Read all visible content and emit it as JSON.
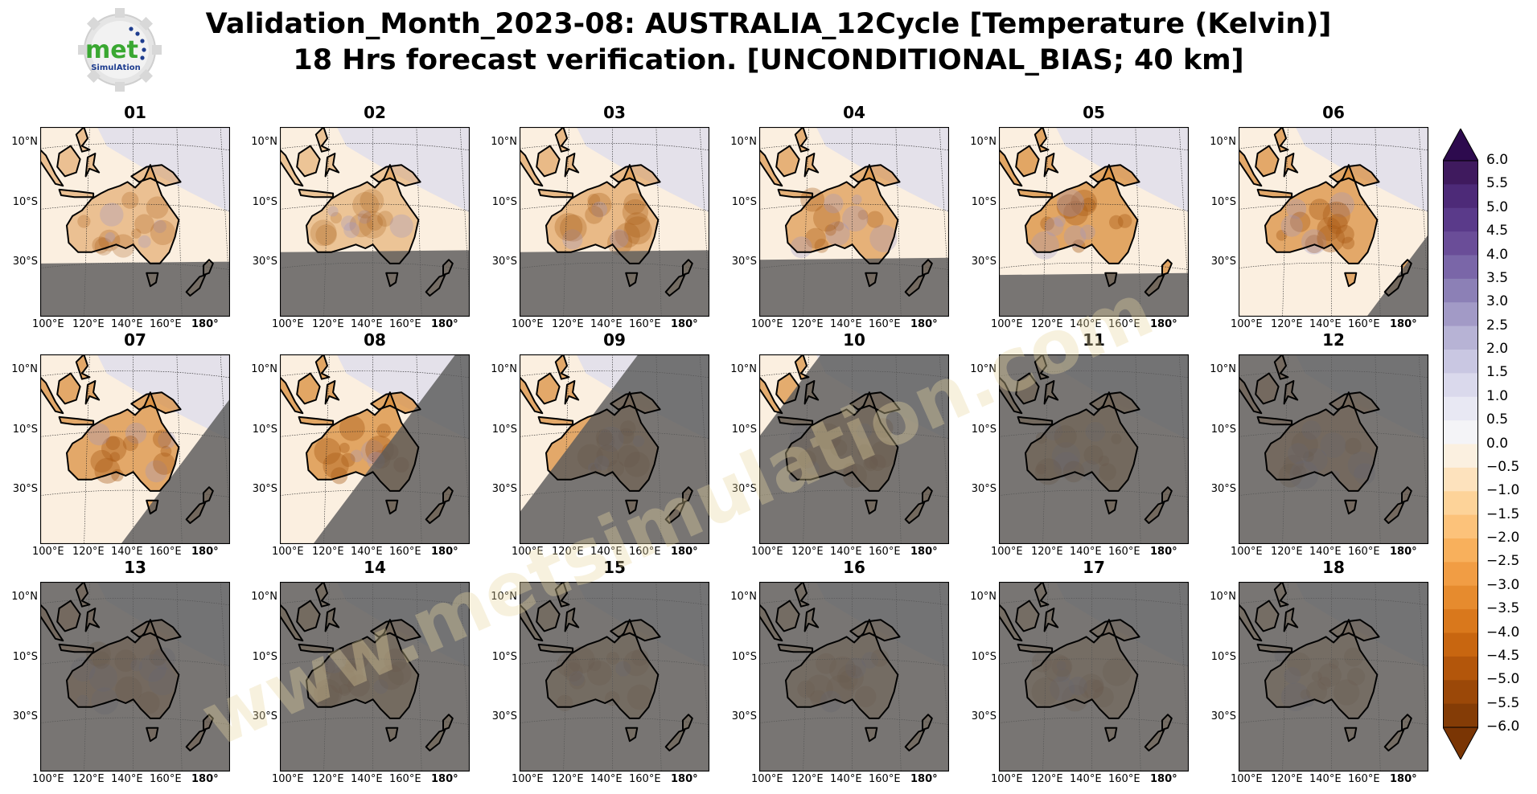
{
  "title": {
    "line1": "Validation_Month_2023-08: AUSTRALIA_12Cycle [Temperature (Kelvin)]",
    "line2": "18 Hrs forecast verification. [UNCONDITIONAL_BIAS; 40 km]"
  },
  "logo": {
    "text": "met",
    "subtext": "SimulAtion",
    "icon": "gear-logo-icon"
  },
  "watermark": "www.metsimulation.com",
  "lat_ticks": [
    "10°N",
    "10°S",
    "30°S"
  ],
  "lon_ticks": [
    "100°E",
    "120°E",
    "140°E",
    "160°E",
    "180°"
  ],
  "panels": [
    {
      "label": "01",
      "mask": {
        "type": "south",
        "level": 0.72
      },
      "intensity": 0.35
    },
    {
      "label": "02",
      "mask": {
        "type": "south",
        "level": 0.66
      },
      "intensity": 0.3
    },
    {
      "label": "03",
      "mask": {
        "type": "south",
        "level": 0.66
      },
      "intensity": 0.45
    },
    {
      "label": "04",
      "mask": {
        "type": "south",
        "level": 0.7
      },
      "intensity": 0.6
    },
    {
      "label": "05",
      "mask": {
        "type": "south",
        "level": 0.78
      },
      "intensity": 0.8
    },
    {
      "label": "06",
      "mask": {
        "type": "diag",
        "level": 1.05
      },
      "intensity": 0.75
    },
    {
      "label": "07",
      "mask": {
        "type": "diag",
        "level": 0.8
      },
      "intensity": 0.75
    },
    {
      "label": "08",
      "mask": {
        "type": "diag",
        "level": 0.55
      },
      "intensity": 0.8
    },
    {
      "label": "09",
      "mask": {
        "type": "diag",
        "level": 0.25
      },
      "intensity": 0.75
    },
    {
      "label": "10",
      "mask": {
        "type": "diag",
        "level": -0.05
      },
      "intensity": 0.7
    },
    {
      "label": "11",
      "mask": {
        "type": "full",
        "level": 0
      },
      "intensity": 0.7
    },
    {
      "label": "12",
      "mask": {
        "type": "full",
        "level": 0
      },
      "intensity": 0.65
    },
    {
      "label": "13",
      "mask": {
        "type": "full",
        "level": 0
      },
      "intensity": 0.65
    },
    {
      "label": "14",
      "mask": {
        "type": "full",
        "level": 0
      },
      "intensity": 0.55
    },
    {
      "label": "15",
      "mask": {
        "type": "full",
        "level": 0
      },
      "intensity": 0.45
    },
    {
      "label": "16",
      "mask": {
        "type": "full",
        "level": 0
      },
      "intensity": 0.4
    },
    {
      "label": "17",
      "mask": {
        "type": "full",
        "level": 0
      },
      "intensity": 0.35
    },
    {
      "label": "18",
      "mask": {
        "type": "full",
        "level": 0
      },
      "intensity": 0.35
    }
  ],
  "colorbar": {
    "labels": [
      "6.0",
      "5.5",
      "5.0",
      "4.5",
      "4.0",
      "3.5",
      "3.0",
      "2.5",
      "2.0",
      "1.5",
      "1.0",
      "0.5",
      "0.0",
      "−0.5",
      "−1.0",
      "−1.5",
      "−2.0",
      "−2.5",
      "−3.0",
      "−3.5",
      "−4.0",
      "−4.5",
      "−5.0",
      "−5.5",
      "−6.0"
    ],
    "colors": [
      "#3f1a5e",
      "#4d2a78",
      "#5a3a8a",
      "#6a4d98",
      "#7a66a8",
      "#8c80b6",
      "#a29ac6",
      "#b7b3d5",
      "#c9c7e2",
      "#dad9ec",
      "#e8e8f3",
      "#f4f4f7",
      "#fbf0e0",
      "#fde2bd",
      "#fdd399",
      "#fcc27a",
      "#f8b05c",
      "#f19d44",
      "#e68b2e",
      "#d9781c",
      "#c86610",
      "#b3560b",
      "#9b4808",
      "#843c06"
    ],
    "color_high": "#2d0a4e",
    "color_low": "#7a3504"
  },
  "colors": {
    "land_bias": "#d88a36",
    "ocean_neutral": "#fbefe0",
    "ocean_cool": "#dcdcee",
    "mask_gray": "#5a5a5a",
    "coast": "#000000"
  }
}
